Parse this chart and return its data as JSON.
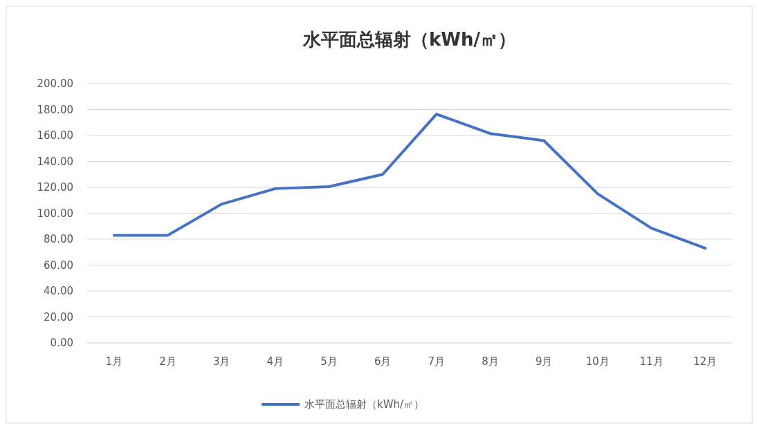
{
  "chart_data": {
    "type": "line",
    "title": "水平面总辐射（kWh/㎡）",
    "categories": [
      "1月",
      "2月",
      "3月",
      "4月",
      "5月",
      "6月",
      "7月",
      "8月",
      "9月",
      "10月",
      "11月",
      "12月"
    ],
    "series": [
      {
        "name": "水平面总辐射（kWh/㎡）",
        "color": "#4472c4",
        "values": [
          83,
          83,
          107,
          119,
          120.5,
          130,
          176.5,
          161.5,
          156,
          115,
          88.5,
          73
        ]
      }
    ],
    "ylim": [
      0,
      200
    ],
    "yticks": [
      {
        "value": 0,
        "label": "0.00"
      },
      {
        "value": 20,
        "label": "20.00"
      },
      {
        "value": 40,
        "label": "40.00"
      },
      {
        "value": 60,
        "label": "60.00"
      },
      {
        "value": 80,
        "label": "80.00"
      },
      {
        "value": 100,
        "label": "100.00"
      },
      {
        "value": 120,
        "label": "120.00"
      },
      {
        "value": 140,
        "label": "140.00"
      },
      {
        "value": 160,
        "label": "160.00"
      },
      {
        "value": 180,
        "label": "180.00"
      },
      {
        "value": 200,
        "label": "200.00"
      }
    ],
    "grid": "y",
    "legend": "bottom",
    "line_style": "solid"
  }
}
